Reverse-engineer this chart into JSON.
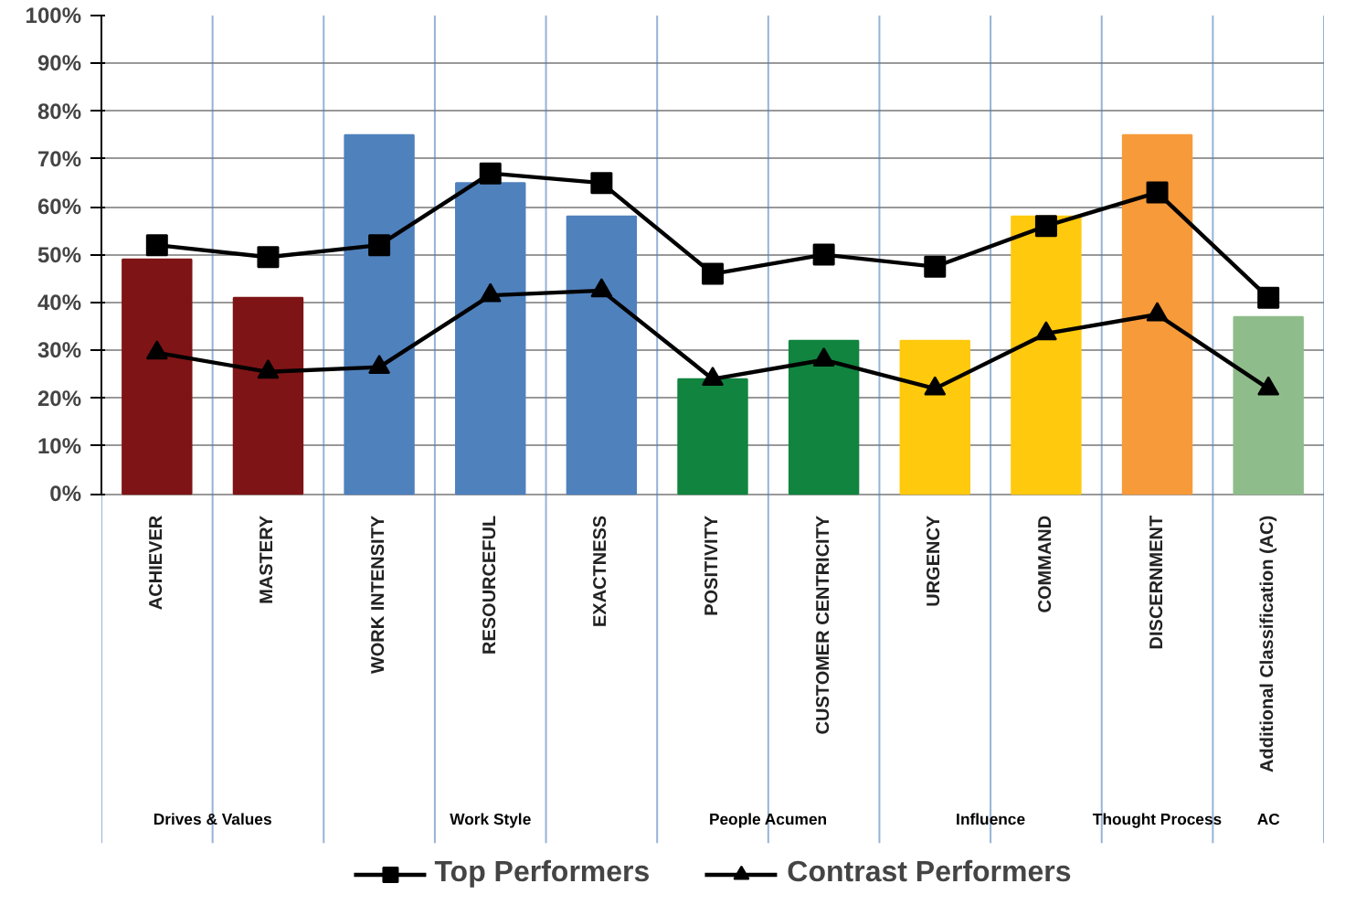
{
  "chart_data": {
    "type": "bar",
    "categories": [
      "ACHIEVER",
      "MASTERY",
      "WORK INTENSITY",
      "RESOURCEFUL",
      "EXACTNESS",
      "POSITIVITY",
      "CUSTOMER CENTRICITY",
      "URGENCY",
      "COMMAND",
      "DISCERNMENT",
      "Additional Classification (AC)"
    ],
    "values": [
      49,
      41,
      75,
      65,
      58,
      24,
      32,
      32,
      58,
      75,
      37
    ],
    "colors": [
      "#7f1416",
      "#7f1416",
      "#4f81bd",
      "#4f81bd",
      "#4f81bd",
      "#11843f",
      "#11843f",
      "#ffc90e",
      "#ffc90e",
      "#f79a3a",
      "#8fbc8b"
    ],
    "series": [
      {
        "name": "Top Performers",
        "type": "line",
        "color": "#000000",
        "marker": "square",
        "values": [
          52,
          49.5,
          52,
          67,
          65,
          46,
          50,
          47.5,
          56,
          63,
          41
        ]
      },
      {
        "name": "Contrast Performers",
        "type": "line",
        "color": "#000000",
        "marker": "triangle",
        "values": [
          29.5,
          25.5,
          26.5,
          41.5,
          42.5,
          24,
          28,
          22,
          33.5,
          37.5,
          22
        ]
      }
    ],
    "ylim": [
      0,
      100
    ],
    "yticks": [
      {
        "value": 0,
        "label": "0%"
      },
      {
        "value": 10,
        "label": "10%"
      },
      {
        "value": 20,
        "label": "20%"
      },
      {
        "value": 30,
        "label": "30%"
      },
      {
        "value": 40,
        "label": "40%"
      },
      {
        "value": 50,
        "label": "50%"
      },
      {
        "value": 60,
        "label": "60%"
      },
      {
        "value": 70,
        "label": "70%"
      },
      {
        "value": 80,
        "label": "80%"
      },
      {
        "value": 90,
        "label": "90%"
      },
      {
        "value": 100,
        "label": "100%"
      }
    ],
    "annotations": [
      "Drives & Values",
      "Work Style",
      "People Acumen",
      "Influence",
      "Thought Process",
      "AC"
    ],
    "grid": true,
    "legend": "bottom"
  }
}
